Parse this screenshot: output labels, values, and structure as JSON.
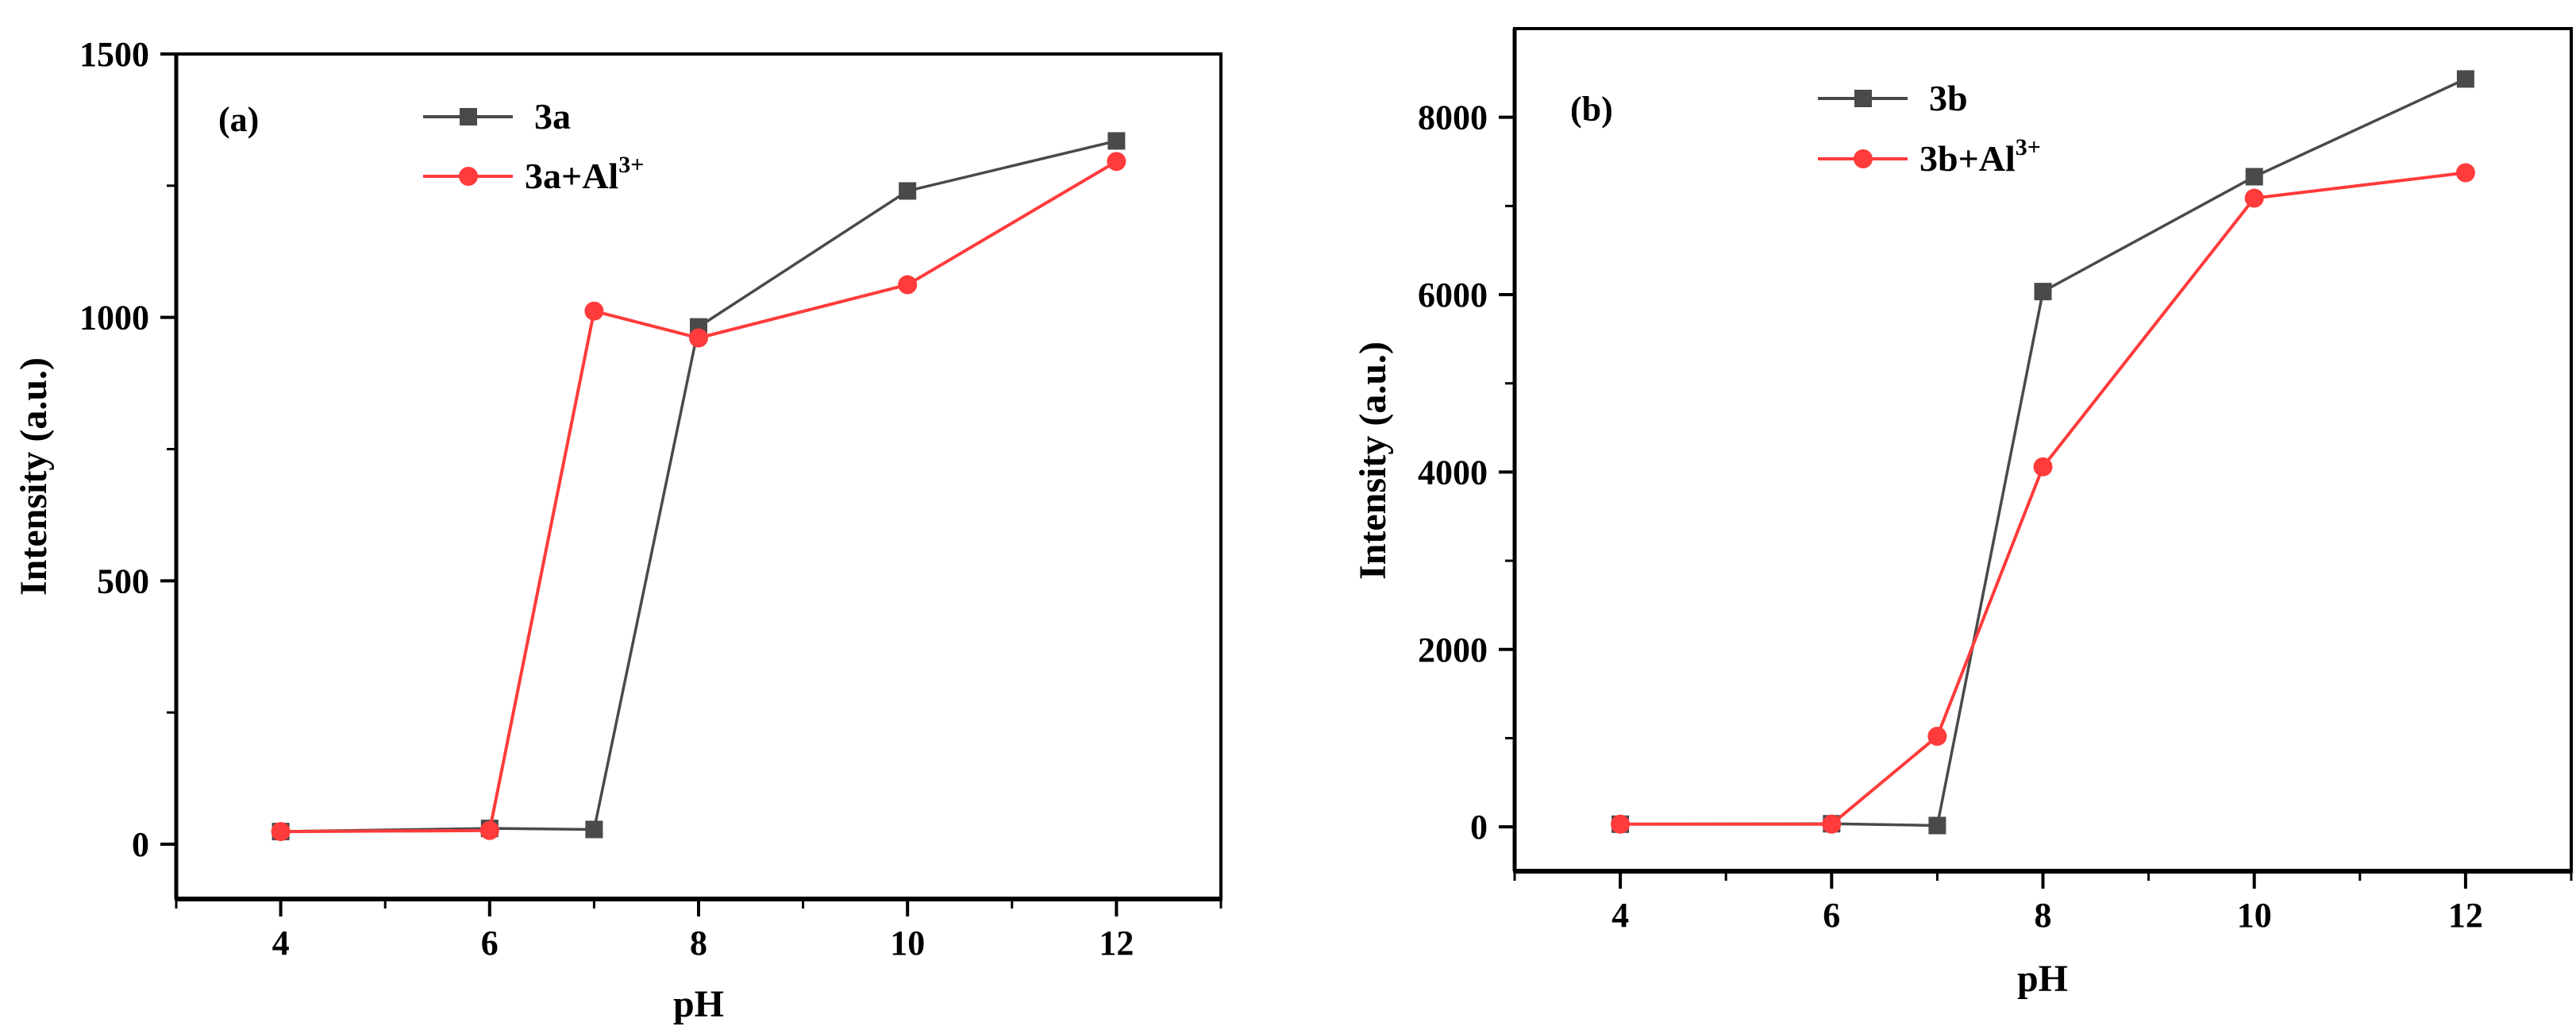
{
  "figure": {
    "panels": [
      "(a)",
      "(b)"
    ]
  },
  "colors": {
    "series_dark": "#4a4a4a",
    "series_red": "#ff3b3b",
    "axis": "#000000",
    "background": "#ffffff"
  },
  "chart_data": [
    {
      "type": "line",
      "panel_label": "(a)",
      "title": "",
      "xlabel": "pH",
      "ylabel": "Intensity (a.u.)",
      "xlim": [
        3,
        13
      ],
      "ylim": [
        -104,
        1500
      ],
      "xticks": [
        4,
        6,
        8,
        10,
        12
      ],
      "xticks_minor": [
        3,
        5,
        7,
        9,
        11,
        13
      ],
      "yticks": [
        0,
        500,
        1000,
        1500
      ],
      "yticks_minor": [
        250,
        750,
        1250
      ],
      "grid": false,
      "legend_position": "upper-center",
      "x": [
        4,
        6,
        7,
        8,
        10,
        12
      ],
      "series": [
        {
          "name": "3a",
          "name_base": "3a",
          "name_sup": "",
          "marker": "square",
          "color": "#4a4a4a",
          "values": [
            24,
            30,
            28,
            982,
            1240,
            1335
          ]
        },
        {
          "name": "3a+Al3+",
          "name_base": "3a+Al",
          "name_sup": "3+",
          "marker": "circle",
          "color": "#ff3b3b",
          "values": [
            24,
            26,
            1012,
            961,
            1062,
            1296
          ]
        }
      ]
    },
    {
      "type": "line",
      "panel_label": "(b)",
      "title": "",
      "xlabel": "pH",
      "ylabel": "Intensity (a.u.)",
      "xlim": [
        3,
        13
      ],
      "ylim": [
        -500,
        9000
      ],
      "xticks": [
        4,
        6,
        8,
        10,
        12
      ],
      "xticks_minor": [
        3,
        5,
        7,
        9,
        11,
        13
      ],
      "yticks": [
        0,
        2000,
        4000,
        6000,
        8000
      ],
      "yticks_minor": [
        1000,
        3000,
        5000,
        7000
      ],
      "grid": false,
      "legend_position": "upper-center",
      "x": [
        4,
        6,
        7,
        8,
        10,
        12
      ],
      "series": [
        {
          "name": "3b",
          "name_base": "3b",
          "name_sup": "",
          "marker": "square",
          "color": "#4a4a4a",
          "values": [
            30,
            35,
            15,
            6035,
            7330,
            8432
          ]
        },
        {
          "name": "3b+Al3+",
          "name_base": "3b+Al",
          "name_sup": "3+",
          "marker": "circle",
          "color": "#ff3b3b",
          "values": [
            30,
            30,
            1021,
            4059,
            7088,
            7375
          ]
        }
      ]
    }
  ]
}
